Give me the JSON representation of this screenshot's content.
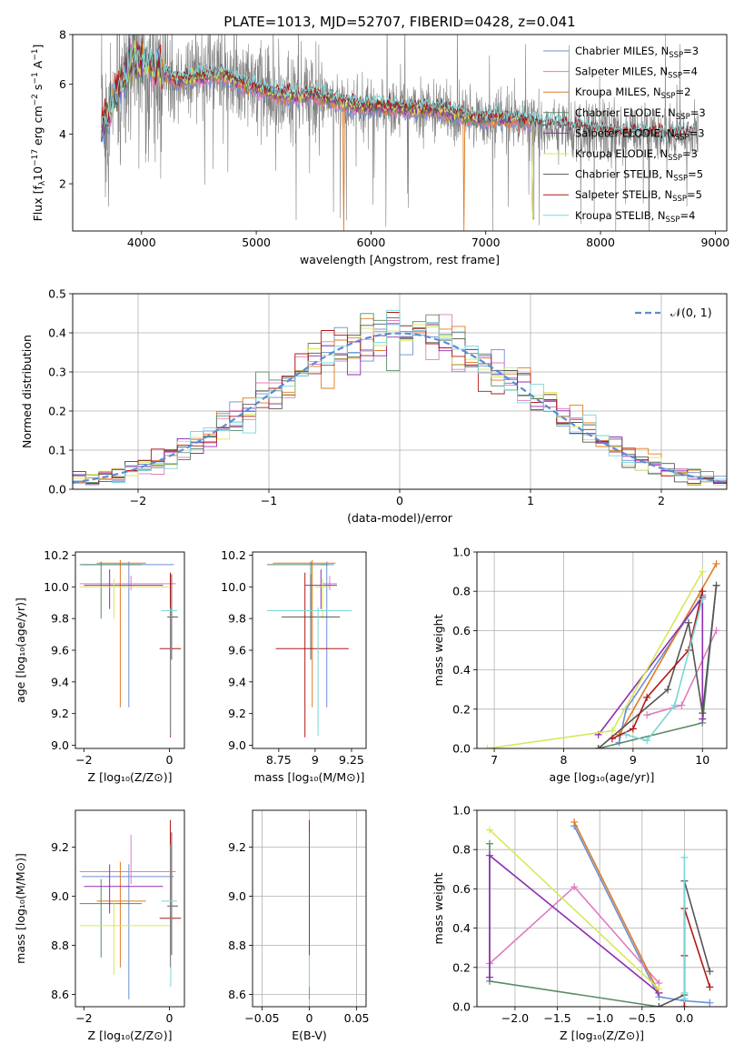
{
  "figure": {
    "title": "PLATE=1013, MJD=52707, FIBERID=0428, z=0.041"
  },
  "chart_data": [
    {
      "id": "spectrum",
      "type": "line",
      "title": "PLATE=1013, MJD=52707, FIBERID=0428, z=0.041",
      "xlabel": "wavelength [Angstrom, rest frame]",
      "ylabel_parts": [
        "Flux [f",
        "λ",
        "10",
        "−17",
        " erg cm",
        "−2",
        " s",
        "−1",
        " A",
        "−1",
        "]"
      ],
      "xlim": [
        3400,
        9100
      ],
      "ylim": [
        0.1,
        8.0
      ],
      "xticks": [
        4000,
        5000,
        6000,
        7000,
        8000,
        9000
      ],
      "yticks": [
        2,
        4,
        6,
        8
      ],
      "grid": false,
      "legend_position": "upper-right",
      "data_color": "#808080",
      "data_coverage": [
        3650,
        8850
      ],
      "model_continuum": {
        "x": [
          3650,
          3700,
          3750,
          3800,
          3850,
          3900,
          3950,
          4000,
          4050,
          4100,
          4200,
          4300,
          4500,
          4700,
          4900,
          5100,
          5300,
          5500,
          5700,
          5900,
          6100,
          6300,
          6500,
          6700,
          6900,
          7100,
          7300,
          7420
        ],
        "y": [
          4.3,
          4.6,
          5.3,
          5.9,
          6.2,
          6.6,
          6.9,
          6.9,
          6.8,
          6.6,
          6.5,
          6.1,
          6.3,
          6.4,
          6.0,
          5.7,
          5.5,
          5.6,
          5.3,
          5.1,
          5.1,
          5.0,
          5.0,
          4.9,
          4.6,
          4.6,
          4.6,
          4.5
        ]
      },
      "stelib_tail": {
        "x": [
          7420,
          7600,
          7800,
          8000,
          8200,
          8400,
          8600,
          8800
        ],
        "y": [
          4.4,
          4.3,
          4.2,
          4.1,
          4.0,
          4.0,
          3.9,
          4.0
        ]
      },
      "series": [
        {
          "name": "Chabrier MILES, N",
          "n": "3",
          "color": "#6a8fd8"
        },
        {
          "name": "Salpeter MILES, N",
          "n": "4",
          "color": "#e07bc0"
        },
        {
          "name": "Kroupa MILES, N",
          "n": "2",
          "color": "#e07b22"
        },
        {
          "name": "Chabrier ELODIE, N",
          "n": "3",
          "color": "#5a8a68"
        },
        {
          "name": "Salpeter ELODIE, N",
          "n": "3",
          "color": "#8e2fb0"
        },
        {
          "name": "Kroupa ELODIE, N",
          "n": "3",
          "color": "#d6e85a"
        },
        {
          "name": "Chabrier STELIB, N",
          "n": "5",
          "color": "#555555"
        },
        {
          "name": "Salpeter STELIB, N",
          "n": "5",
          "color": "#b01818"
        },
        {
          "name": "Kroupa STELIB, N",
          "n": "4",
          "color": "#7ad6d8"
        }
      ],
      "legend_subscript": "SSP"
    },
    {
      "id": "residuals",
      "type": "histogram",
      "xlabel": "(data-model)/error",
      "ylabel": "Normed distribution",
      "xlim": [
        -2.5,
        2.5
      ],
      "ylim": [
        0,
        0.5
      ],
      "xticks": [
        -2,
        -1,
        0,
        1,
        2
      ],
      "yticks": [
        0.0,
        0.1,
        0.2,
        0.3,
        0.4,
        0.5
      ],
      "grid": true,
      "legend_position": "upper-right",
      "legend_entry": "𝒩(0, 1)",
      "gaussian_color": "#5b8ad8",
      "bin_width": 0.1,
      "bin_start": -2.5
    },
    {
      "id": "age_vs_Z",
      "type": "errorbar",
      "xlabel": "Z [log₁₀(Z/Z⊙)]",
      "ylabel": "age  [log₁₀(age/yr)]",
      "xlim": [
        -2.2,
        0.35
      ],
      "ylim": [
        8.98,
        10.22
      ],
      "xticks": [
        -2,
        0
      ],
      "yticks": [
        9.0,
        9.2,
        9.4,
        9.6,
        9.8,
        10.0,
        10.2
      ],
      "grid": false,
      "points": [
        {
          "series": "Chabrier MILES",
          "x": -0.95,
          "y": 10.14,
          "xerr": [
            1.1,
            1.05
          ],
          "yerr": [
            0.9,
            0.02
          ]
        },
        {
          "series": "Salpeter MILES",
          "x": -0.9,
          "y": 10.02,
          "xerr": [
            1.2,
            1.05
          ],
          "yerr": [
            0.04,
            0.05
          ]
        },
        {
          "series": "Kroupa MILES",
          "x": -1.15,
          "y": 10.15,
          "xerr": [
            0.55,
            0.6
          ],
          "yerr": [
            0.91,
            0.02
          ]
        },
        {
          "series": "Chabrier ELODIE",
          "x": -1.6,
          "y": 10.14,
          "xerr": [
            0.5,
            0.95
          ],
          "yerr": [
            0.34,
            0.02
          ]
        },
        {
          "series": "Salpeter ELODIE",
          "x": -1.4,
          "y": 10.01,
          "xerr": [
            0.6,
            1.25
          ],
          "yerr": [
            0.15,
            0.1
          ]
        },
        {
          "series": "Kroupa ELODIE",
          "x": -1.3,
          "y": 10.0,
          "xerr": [
            0.8,
            1.3
          ],
          "yerr": [
            0.2,
            0.05
          ]
        },
        {
          "series": "Chabrier STELIB",
          "x": 0.05,
          "y": 9.81,
          "xerr": [
            0.1,
            0.15
          ],
          "yerr": [
            0.27,
            0.27
          ]
        },
        {
          "series": "Salpeter STELIB",
          "x": 0.02,
          "y": 9.61,
          "xerr": [
            0.25,
            0.25
          ],
          "yerr": [
            0.56,
            0.48
          ]
        },
        {
          "series": "Kroupa STELIB",
          "x": 0.03,
          "y": 9.85,
          "xerr": [
            0.22,
            0.15
          ],
          "yerr": [
            0.79,
            0.02
          ]
        }
      ]
    },
    {
      "id": "age_vs_mass",
      "type": "errorbar",
      "xlabel": "mass [log₁₀(M/M⊙)]",
      "ylabel": "",
      "xlim": [
        8.57,
        9.35
      ],
      "ylim": [
        8.98,
        10.22
      ],
      "xticks": [
        8.75,
        9.0,
        9.25
      ],
      "yticks": [
        9.0,
        9.2,
        9.4,
        9.6,
        9.8,
        10.0,
        10.2
      ],
      "grid": false,
      "points": [
        {
          "series": "Chabrier MILES",
          "x": 9.08,
          "y": 10.14,
          "xerr": [
            0.05,
            0.05
          ],
          "yerr": [
            0.9,
            0.02
          ]
        },
        {
          "series": "Salpeter MILES",
          "x": 9.1,
          "y": 10.02,
          "xerr": [
            0.05,
            0.05
          ],
          "yerr": [
            0.04,
            0.05
          ]
        },
        {
          "series": "Kroupa MILES",
          "x": 8.98,
          "y": 10.15,
          "xerr": [
            0.27,
            0.16
          ],
          "yerr": [
            0.91,
            0.02
          ]
        },
        {
          "series": "Chabrier ELODIE",
          "x": 8.97,
          "y": 10.14,
          "xerr": [
            0.3,
            0.12
          ],
          "yerr": [
            0.34,
            0.02
          ]
        },
        {
          "series": "Salpeter ELODIE",
          "x": 9.04,
          "y": 10.01,
          "xerr": [
            0.11,
            0.11
          ],
          "yerr": [
            0.15,
            0.1
          ]
        },
        {
          "series": "Kroupa ELODIE",
          "x": 9.05,
          "y": 10.0,
          "xerr": [
            0.05,
            0.05
          ],
          "yerr": [
            0.2,
            0.05
          ]
        },
        {
          "series": "Chabrier STELIB",
          "x": 8.97,
          "y": 9.81,
          "xerr": [
            0.2,
            0.2
          ],
          "yerr": [
            0.27,
            0.27
          ]
        },
        {
          "series": "Salpeter STELIB",
          "x": 8.93,
          "y": 9.61,
          "xerr": [
            0.2,
            0.3
          ],
          "yerr": [
            0.56,
            0.48
          ]
        },
        {
          "series": "Kroupa STELIB",
          "x": 9.02,
          "y": 9.85,
          "xerr": [
            0.35,
            0.23
          ],
          "yerr": [
            0.79,
            0.02
          ]
        }
      ]
    },
    {
      "id": "weight_vs_age",
      "type": "line",
      "xlabel": "age  [log₁₀(age/yr)]",
      "ylabel": "mass weight",
      "xlim": [
        6.75,
        10.35
      ],
      "ylim": [
        0,
        1.0
      ],
      "xticks": [
        7,
        8,
        9,
        10
      ],
      "yticks": [
        0.0,
        0.2,
        0.4,
        0.6,
        0.8,
        1.0
      ],
      "grid": true,
      "series": [
        {
          "name": "Chabrier MILES",
          "x": [
            8.8,
            8.9,
            10.0
          ],
          "y": [
            0.03,
            0.2,
            0.78
          ]
        },
        {
          "name": "Salpeter MILES",
          "x": [
            9.2,
            9.7,
            10.2
          ],
          "y": [
            0.17,
            0.22,
            0.6
          ]
        },
        {
          "name": "Kroupa MILES",
          "x": [
            8.8,
            10.2
          ],
          "y": [
            0.07,
            0.94
          ]
        },
        {
          "name": "Chabrier ELODIE",
          "x": [
            8.5,
            10.0,
            10.2
          ],
          "y": [
            0.0,
            0.13,
            0.83
          ]
        },
        {
          "name": "Salpeter ELODIE",
          "x": [
            8.5,
            10.0,
            10.0
          ],
          "y": [
            0.07,
            0.77,
            0.15
          ]
        },
        {
          "name": "Kroupa ELODIE",
          "x": [
            6.9,
            8.7,
            10.0
          ],
          "y": [
            0.0,
            0.09,
            0.9
          ]
        },
        {
          "name": "Chabrier STELIB",
          "x": [
            8.5,
            9.5,
            9.8,
            10.0,
            10.2
          ],
          "y": [
            0.0,
            0.3,
            0.64,
            0.18,
            0.83
          ]
        },
        {
          "name": "Salpeter STELIB",
          "x": [
            8.7,
            9.0,
            9.2,
            9.8,
            10.0
          ],
          "y": [
            0.05,
            0.1,
            0.26,
            0.5,
            0.8
          ]
        },
        {
          "name": "Kroupa STELIB",
          "x": [
            8.9,
            9.2,
            9.6,
            10.0
          ],
          "y": [
            0.07,
            0.04,
            0.22,
            0.76
          ]
        }
      ]
    },
    {
      "id": "mass_vs_Z",
      "type": "errorbar",
      "xlabel": "Z [log₁₀(Z/Z⊙)]",
      "ylabel": "mass [log₁₀(M/M⊙)]",
      "xlim": [
        -2.2,
        0.35
      ],
      "ylim": [
        8.55,
        9.35
      ],
      "xticks": [
        -2,
        0
      ],
      "yticks": [
        8.6,
        8.8,
        9.0,
        9.2
      ],
      "grid": false,
      "points": [
        {
          "series": "Chabrier MILES",
          "x": -0.95,
          "y": 9.08,
          "xerr": [
            1.1,
            1.05
          ],
          "yerr": [
            0.5,
            0.05
          ]
        },
        {
          "series": "Salpeter MILES",
          "x": -0.9,
          "y": 9.1,
          "xerr": [
            1.2,
            1.05
          ],
          "yerr": [
            0.05,
            0.15
          ]
        },
        {
          "series": "Kroupa MILES",
          "x": -1.15,
          "y": 8.98,
          "xerr": [
            0.55,
            0.6
          ],
          "yerr": [
            0.27,
            0.16
          ]
        },
        {
          "series": "Chabrier ELODIE",
          "x": -1.6,
          "y": 8.97,
          "xerr": [
            0.5,
            0.95
          ],
          "yerr": [
            0.22,
            0.1
          ]
        },
        {
          "series": "Salpeter ELODIE",
          "x": -1.4,
          "y": 9.04,
          "xerr": [
            0.6,
            1.25
          ],
          "yerr": [
            0.11,
            0.09
          ]
        },
        {
          "series": "Kroupa ELODIE",
          "x": -1.3,
          "y": 8.88,
          "xerr": [
            0.8,
            1.3
          ],
          "yerr": [
            0.2,
            0.1
          ]
        },
        {
          "series": "Chabrier STELIB",
          "x": 0.05,
          "y": 8.96,
          "xerr": [
            0.1,
            0.15
          ],
          "yerr": [
            0.2,
            0.3
          ]
        },
        {
          "series": "Salpeter STELIB",
          "x": 0.02,
          "y": 8.91,
          "xerr": [
            0.25,
            0.25
          ],
          "yerr": [
            0.2,
            0.4
          ]
        },
        {
          "series": "Kroupa STELIB",
          "x": 0.03,
          "y": 8.98,
          "xerr": [
            0.22,
            0.15
          ],
          "yerr": [
            0.35,
            0.23
          ]
        }
      ]
    },
    {
      "id": "mass_vs_ebv",
      "type": "errorbar",
      "xlabel": "E(B-V)",
      "ylabel": "",
      "xlim": [
        -0.06,
        0.06
      ],
      "ylim": [
        8.55,
        9.35
      ],
      "xticks": [
        -0.05,
        0.0,
        0.05
      ],
      "yticks": [
        8.6,
        8.8,
        9.0,
        9.2
      ],
      "grid": true,
      "points": [
        {
          "series": "Chabrier MILES",
          "x": 0.0,
          "y": 9.08,
          "xerr": [
            0,
            0
          ],
          "yerr": [
            0.5,
            0.05
          ]
        },
        {
          "series": "Salpeter STELIB",
          "x": 0.0,
          "y": 8.91,
          "xerr": [
            0,
            0
          ],
          "yerr": [
            0.2,
            0.4
          ]
        },
        {
          "series": "Kroupa STELIB",
          "x": 0.0,
          "y": 8.98,
          "xerr": [
            0,
            0
          ],
          "yerr": [
            0.35,
            0.23
          ]
        },
        {
          "series": "Chabrier STELIB",
          "x": 0.0,
          "y": 8.96,
          "xerr": [
            0,
            0
          ],
          "yerr": [
            0.2,
            0.3
          ]
        }
      ]
    },
    {
      "id": "weight_vs_Z",
      "type": "line",
      "xlabel": "Z [log₁₀(Z/Z⊙)]",
      "ylabel": "mass weight",
      "xlim": [
        -2.45,
        0.5
      ],
      "ylim": [
        0,
        1.0
      ],
      "xticks": [
        -2.0,
        -1.5,
        -1.0,
        -0.5,
        0.0
      ],
      "xticklabels": [
        "−2.0",
        "−1.5",
        "−1.0",
        "−0.5",
        "0.0"
      ],
      "yticks": [
        0.0,
        0.2,
        0.4,
        0.6,
        0.8,
        1.0
      ],
      "grid": true,
      "series": [
        {
          "name": "Chabrier MILES",
          "x": [
            -1.3,
            -0.3,
            0.0,
            0.3
          ],
          "y": [
            0.92,
            0.05,
            0.03,
            0.02
          ]
        },
        {
          "name": "Salpeter MILES",
          "x": [
            -2.3,
            -1.3,
            -0.3
          ],
          "y": [
            0.22,
            0.61,
            0.12
          ]
        },
        {
          "name": "Kroupa MILES",
          "x": [
            -1.3,
            -0.3
          ],
          "y": [
            0.94,
            0.07
          ]
        },
        {
          "name": "Chabrier ELODIE",
          "x": [
            -2.3,
            -2.3,
            -0.3
          ],
          "y": [
            0.83,
            0.13,
            0.0
          ]
        },
        {
          "name": "Salpeter ELODIE",
          "x": [
            -2.3,
            -2.3,
            -0.3
          ],
          "y": [
            0.15,
            0.77,
            0.07
          ]
        },
        {
          "name": "Kroupa ELODIE",
          "x": [
            -2.3,
            -0.3
          ],
          "y": [
            0.9,
            0.09
          ]
        },
        {
          "name": "Chabrier STELIB",
          "x": [
            -0.3,
            0.0,
            0.0,
            0.3
          ],
          "y": [
            0.0,
            0.06,
            0.64,
            0.18
          ]
        },
        {
          "name": "Salpeter STELIB",
          "x": [
            0.0,
            0.0,
            0.0,
            0.3
          ],
          "y": [
            0.0,
            0.26,
            0.5,
            0.1
          ]
        },
        {
          "name": "Kroupa STELIB",
          "x": [
            0.0,
            0.0,
            0.0
          ],
          "y": [
            0.04,
            0.07,
            0.76
          ]
        }
      ]
    }
  ]
}
